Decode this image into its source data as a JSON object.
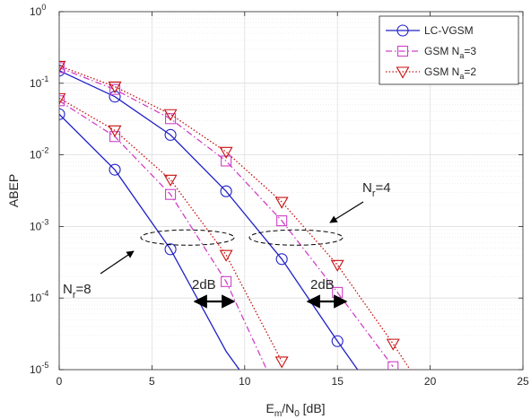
{
  "chart_data": {
    "type": "line",
    "xlabel": {
      "main": "E",
      "sub1": "m",
      "mid": "/N",
      "sub2": "0",
      "tail": " [dB]"
    },
    "ylabel": "ABEP",
    "xlim": [
      0,
      25
    ],
    "ylim": [
      1e-05,
      1
    ],
    "yscale": "log",
    "grid": true,
    "xticks": [
      0,
      5,
      10,
      15,
      20,
      25
    ],
    "xtick_labels": [
      "0",
      "5",
      "10",
      "15",
      "20",
      "25"
    ],
    "yticks": [
      {
        "value": 1,
        "base": "10",
        "exp": "0"
      },
      {
        "value": 0.1,
        "base": "10",
        "exp": "-1"
      },
      {
        "value": 0.01,
        "base": "10",
        "exp": "-2"
      },
      {
        "value": 0.001,
        "base": "10",
        "exp": "-3"
      },
      {
        "value": 0.0001,
        "base": "10",
        "exp": "-4"
      },
      {
        "value": 1e-05,
        "base": "10",
        "exp": "-5"
      }
    ],
    "legend": {
      "placement": "top-right",
      "entries": [
        {
          "series": "lc",
          "label": "LC-VGSM",
          "sub": "",
          "tail": ""
        },
        {
          "series": "na3",
          "label": "GSM N",
          "sub": "a",
          "tail": "=3"
        },
        {
          "series": "na2",
          "label": "GSM N",
          "sub": "a",
          "tail": "=2"
        }
      ]
    },
    "series": [
      {
        "id": "lc",
        "color": "#2020c8",
        "dash": "solid",
        "marker": "circle",
        "group": "Nr=8",
        "x": [
          0,
          3,
          6,
          9,
          12
        ],
        "y": [
          0.037,
          0.0062,
          0.00048,
          1.8e-05,
          1.5e-06
        ],
        "marker_x": [
          0,
          3,
          6
        ]
      },
      {
        "id": "na3",
        "color": "#d040c8",
        "dash": "dashdot",
        "marker": "square",
        "group": "Nr=8",
        "x": [
          0,
          3,
          6,
          9,
          12
        ],
        "y": [
          0.057,
          0.018,
          0.0028,
          0.00017,
          3.5e-06
        ],
        "marker_x": [
          0,
          3,
          6,
          9
        ]
      },
      {
        "id": "na2",
        "color": "#c81010",
        "dash": "dotted",
        "marker": "triangle",
        "group": "Nr=8",
        "x": [
          0,
          3,
          6,
          9,
          12
        ],
        "y": [
          0.062,
          0.022,
          0.0045,
          0.0004,
          1.3e-05
        ],
        "marker_x": [
          0,
          3,
          6,
          9,
          12
        ]
      },
      {
        "id": "lc",
        "color": "#2020c8",
        "dash": "solid",
        "marker": "circle",
        "group": "Nr=4",
        "x": [
          0,
          3,
          6,
          9,
          12,
          15,
          18
        ],
        "y": [
          0.15,
          0.065,
          0.019,
          0.0031,
          0.00035,
          2.5e-05,
          2e-06
        ],
        "marker_x": [
          0,
          3,
          6,
          9,
          12,
          15
        ]
      },
      {
        "id": "na3",
        "color": "#d040c8",
        "dash": "dashdot",
        "marker": "square",
        "group": "Nr=4",
        "x": [
          0,
          3,
          6,
          9,
          12,
          15,
          18
        ],
        "y": [
          0.165,
          0.082,
          0.032,
          0.0082,
          0.0012,
          0.00012,
          1.1e-05
        ],
        "marker_x": [
          0,
          3,
          6,
          9,
          12,
          15,
          18
        ]
      },
      {
        "id": "na2",
        "color": "#c81010",
        "dash": "dotted",
        "marker": "triangle",
        "group": "Nr=4",
        "x": [
          0,
          3,
          6,
          9,
          12,
          15,
          18,
          21
        ],
        "y": [
          0.175,
          0.09,
          0.037,
          0.011,
          0.0022,
          0.00029,
          2.3e-05,
          1.5e-06
        ],
        "marker_x": [
          0,
          3,
          6,
          9,
          12,
          15,
          18
        ]
      }
    ],
    "annotations": [
      {
        "id": "nr4",
        "base": "N",
        "sub": "r",
        "tail": "=4"
      },
      {
        "id": "nr8",
        "base": "N",
        "sub": "r",
        "tail": "=8"
      },
      {
        "id": "gap8",
        "text": "2dB"
      },
      {
        "id": "gap4",
        "text": "2dB"
      }
    ]
  }
}
